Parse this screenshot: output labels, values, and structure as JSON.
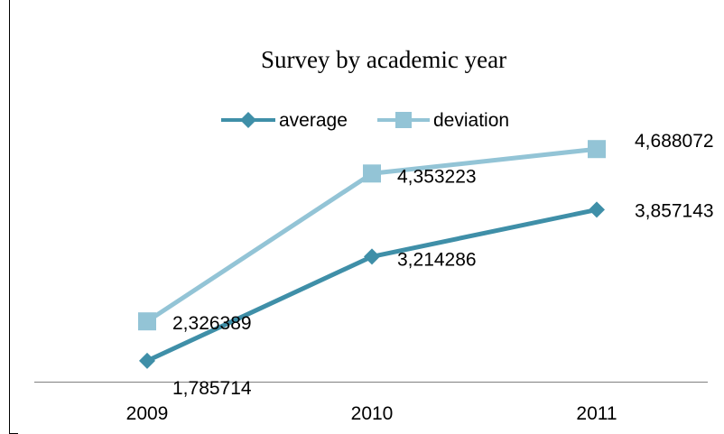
{
  "chart_data": {
    "type": "line",
    "title": "Survey by academic year",
    "xlabel": "",
    "ylabel": "",
    "categories": [
      "2009",
      "2010",
      "2011"
    ],
    "series": [
      {
        "name": "average",
        "values": [
          1.785714,
          3.214286,
          3.857143
        ],
        "labels": [
          "1,785714",
          "3,214286",
          "3,857143"
        ],
        "color": "#3f8fa8",
        "marker": "diamond"
      },
      {
        "name": "deviation",
        "values": [
          2.326389,
          4.353223,
          4.688072
        ],
        "labels": [
          "2,326389",
          "4,353223",
          "4,688072"
        ],
        "color": "#93c4d6",
        "marker": "square"
      }
    ],
    "ylim": [
      1.5,
      5
    ],
    "grid": false,
    "legend": "top"
  }
}
